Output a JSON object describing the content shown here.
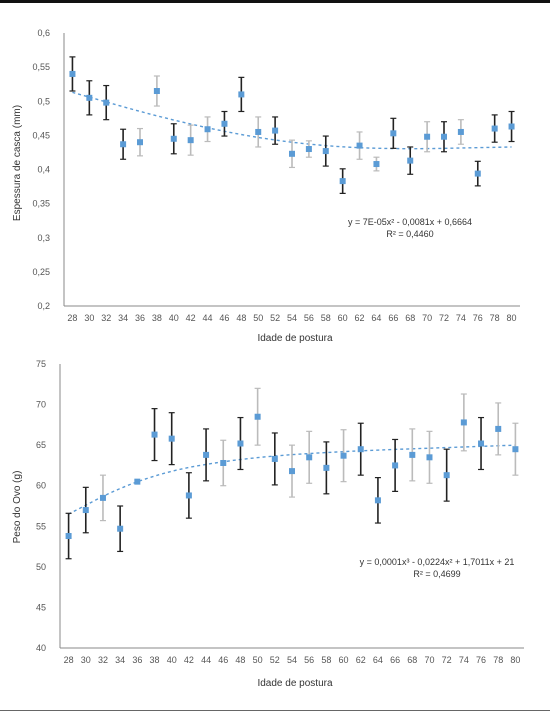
{
  "chart_data": [
    {
      "type": "scatter",
      "title": "",
      "xlabel": "Idade de postura",
      "ylabel": "Espessura de casca (mm)",
      "ylim": [
        0.2,
        0.6
      ],
      "yticks": [
        "0,2",
        "0,25",
        "0,3",
        "0,35",
        "0,4",
        "0,45",
        "0,5",
        "0,55",
        "0,6"
      ],
      "x": [
        28,
        30,
        32,
        34,
        36,
        38,
        40,
        42,
        44,
        46,
        48,
        50,
        52,
        54,
        56,
        58,
        60,
        62,
        64,
        66,
        68,
        70,
        72,
        74,
        76,
        78,
        80
      ],
      "series": [
        {
          "name": "",
          "color": "#5b9bd5",
          "values": [
            0.54,
            0.505,
            0.498,
            0.437,
            0.44,
            0.515,
            0.445,
            0.443,
            0.459,
            0.467,
            0.51,
            0.455,
            0.457,
            0.423,
            0.43,
            0.427,
            0.383,
            0.435,
            0.408,
            0.453,
            0.413,
            0.448,
            0.448,
            0.455,
            0.394,
            0.46,
            0.463
          ],
          "errors": [
            0.025,
            0.025,
            0.025,
            0.022,
            0.02,
            0.022,
            0.022,
            0.022,
            0.018,
            0.018,
            0.025,
            0.022,
            0.02,
            0.02,
            0.012,
            0.022,
            0.018,
            0.02,
            0.01,
            0.022,
            0.02,
            0.022,
            0.022,
            0.018,
            0.018,
            0.02,
            0.022
          ],
          "error_colors": [
            "#222",
            "#222",
            "#222",
            "#222",
            "#bbb",
            "#bbb",
            "#222",
            "#bbb",
            "#bbb",
            "#222",
            "#222",
            "#bbb",
            "#222",
            "#bbb",
            "#bbb",
            "#222",
            "#222",
            "#bbb",
            "#bbb",
            "#222",
            "#222",
            "#bbb",
            "#222",
            "#bbb",
            "#222",
            "#222",
            "#222"
          ]
        }
      ],
      "trendline": {
        "type": "poly2",
        "x0": 28,
        "points": [
          [
            28,
            0.513
          ],
          [
            40,
            0.471
          ],
          [
            52,
            0.441
          ],
          [
            64,
            0.429
          ],
          [
            80,
            0.433
          ]
        ]
      },
      "equation": "y = 7E-05x² - 0,0081x + 0,6664",
      "r2": "R² = 0,4460"
    },
    {
      "type": "scatter",
      "title": "",
      "xlabel": "Idade de postura",
      "ylabel": "Peso do Ovo (g)",
      "ylim": [
        40,
        75
      ],
      "yticks": [
        "40",
        "45",
        "50",
        "55",
        "60",
        "65",
        "70",
        "75"
      ],
      "x": [
        28,
        30,
        32,
        34,
        36,
        38,
        40,
        42,
        44,
        46,
        48,
        50,
        52,
        54,
        56,
        58,
        60,
        62,
        64,
        66,
        68,
        70,
        72,
        74,
        76,
        78,
        80
      ],
      "series": [
        {
          "name": "",
          "color": "#5b9bd5",
          "values": [
            53.8,
            57,
            58.5,
            54.7,
            60.5,
            66.3,
            65.8,
            58.8,
            63.8,
            62.8,
            65.2,
            68.5,
            63.3,
            61.8,
            63.5,
            62.2,
            63.7,
            64.5,
            58.2,
            62.5,
            63.8,
            63.5,
            61.3,
            67.8,
            65.2,
            67,
            64.5
          ],
          "errors": [
            2.8,
            2.8,
            2.8,
            2.8,
            0,
            3.2,
            3.2,
            2.8,
            3.2,
            2.8,
            3.2,
            3.5,
            3.2,
            3.2,
            3.2,
            3.2,
            3.2,
            3.2,
            2.8,
            3.2,
            3.2,
            3.2,
            3.2,
            3.5,
            3.2,
            3.2,
            3.2
          ],
          "error_colors": [
            "#222",
            "#222",
            "#bbb",
            "#222",
            "#bbb",
            "#222",
            "#222",
            "#222",
            "#222",
            "#bbb",
            "#222",
            "#bbb",
            "#222",
            "#bbb",
            "#bbb",
            "#222",
            "#bbb",
            "#222",
            "#222",
            "#222",
            "#bbb",
            "#bbb",
            "#222",
            "#bbb",
            "#222",
            "#bbb",
            "#bbb"
          ]
        }
      ],
      "trendline": {
        "type": "log",
        "points": [
          [
            28,
            56.5
          ],
          [
            34,
            59.8
          ],
          [
            40,
            61.9
          ],
          [
            46,
            63
          ],
          [
            52,
            63.7
          ],
          [
            58,
            64.1
          ],
          [
            64,
            64.4
          ],
          [
            72,
            64.7
          ],
          [
            80,
            65
          ]
        ]
      },
      "equation": "y = 0,0001x³ - 0,0224x² + 1,7011x + 21",
      "r2": "R² = 0,4699"
    }
  ]
}
